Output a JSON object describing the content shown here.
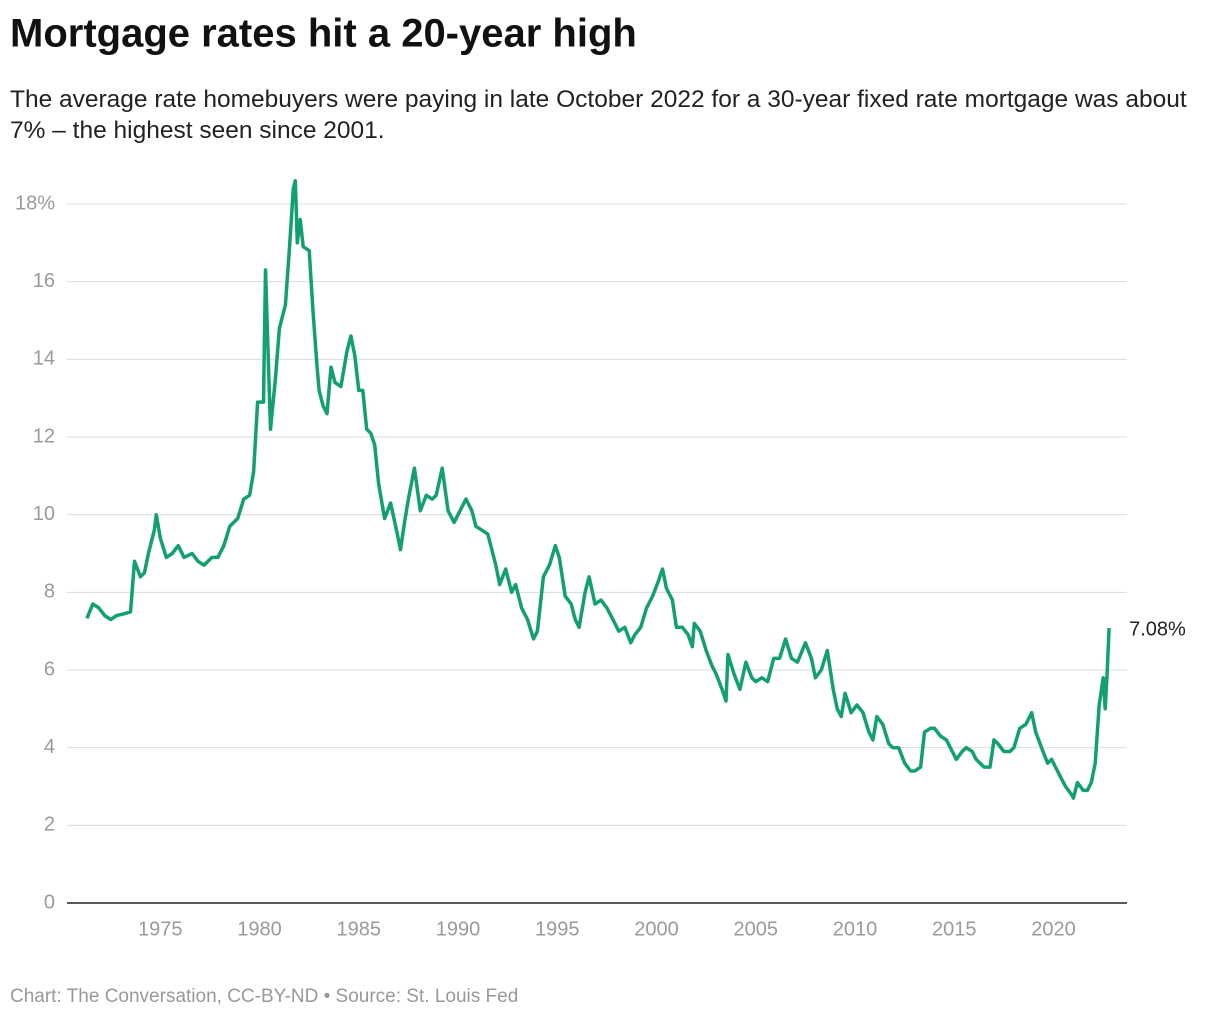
{
  "chart_data": {
    "type": "line",
    "title": "Mortgage rates hit a 20-year high",
    "subtitle": "The average rate homebuyers were paying in late October 2022 for a 30-year fixed rate mortgage was about 7% – the highest seen since 2001.",
    "source": "Chart: The Conversation, CC-BY-ND • Source: St. Louis Fed",
    "color": "#13a06f",
    "end_label": "7.08%",
    "grid": true,
    "xlim": [
      1970.3,
      2023.7
    ],
    "xticks": [
      1975,
      1980,
      1985,
      1990,
      1995,
      2000,
      2005,
      2010,
      2015,
      2020
    ],
    "ylim": [
      0,
      18
    ],
    "yticks": [
      0,
      2,
      4,
      6,
      8,
      10,
      12,
      14,
      16,
      {
        "value": 18,
        "label": "18%"
      }
    ],
    "x": [
      1971.3,
      1971.6,
      1971.9,
      1972.2,
      1972.5,
      1972.8,
      1973.2,
      1973.5,
      1973.7,
      1974.0,
      1974.2,
      1974.4,
      1974.7,
      1974.8,
      1975.0,
      1975.3,
      1975.6,
      1975.9,
      1976.2,
      1976.6,
      1976.9,
      1977.2,
      1977.6,
      1977.9,
      1978.2,
      1978.5,
      1978.9,
      1979.2,
      1979.5,
      1979.7,
      1979.9,
      1980.2,
      1980.3,
      1980.55,
      1980.8,
      1981.0,
      1981.3,
      1981.5,
      1981.7,
      1981.8,
      1981.9,
      1982.05,
      1982.2,
      1982.5,
      1982.7,
      1982.9,
      1983.0,
      1983.2,
      1983.4,
      1983.6,
      1983.8,
      1984.1,
      1984.4,
      1984.6,
      1984.8,
      1985.0,
      1985.2,
      1985.4,
      1985.6,
      1985.8,
      1986.0,
      1986.3,
      1986.6,
      1986.9,
      1987.1,
      1987.3,
      1987.5,
      1987.8,
      1988.1,
      1988.4,
      1988.7,
      1988.9,
      1989.2,
      1989.5,
      1989.8,
      1990.1,
      1990.4,
      1990.7,
      1990.9,
      1991.2,
      1991.5,
      1991.9,
      1992.1,
      1992.4,
      1992.7,
      1992.9,
      1993.2,
      1993.5,
      1993.8,
      1994.0,
      1994.3,
      1994.6,
      1994.9,
      1995.1,
      1995.4,
      1995.7,
      1995.9,
      1996.1,
      1996.4,
      1996.6,
      1996.9,
      1997.2,
      1997.5,
      1997.8,
      1998.1,
      1998.4,
      1998.7,
      1998.9,
      1999.2,
      1999.5,
      1999.8,
      2000.1,
      2000.3,
      2000.5,
      2000.8,
      2001.0,
      2001.3,
      2001.6,
      2001.8,
      2001.9,
      2002.2,
      2002.5,
      2002.8,
      2003.0,
      2003.3,
      2003.5,
      2003.6,
      2003.9,
      2004.2,
      2004.5,
      2004.8,
      2005.0,
      2005.3,
      2005.6,
      2005.9,
      2006.2,
      2006.5,
      2006.8,
      2007.1,
      2007.5,
      2007.8,
      2008.0,
      2008.3,
      2008.6,
      2008.9,
      2009.1,
      2009.3,
      2009.5,
      2009.8,
      2010.1,
      2010.4,
      2010.7,
      2010.9,
      2011.1,
      2011.4,
      2011.7,
      2011.9,
      2012.2,
      2012.5,
      2012.8,
      2013.0,
      2013.3,
      2013.5,
      2013.8,
      2014.0,
      2014.3,
      2014.6,
      2014.9,
      2015.1,
      2015.4,
      2015.6,
      2015.9,
      2016.1,
      2016.5,
      2016.8,
      2017.0,
      2017.2,
      2017.5,
      2017.8,
      2018.0,
      2018.3,
      2018.6,
      2018.9,
      2019.1,
      2019.4,
      2019.7,
      2019.9,
      2020.1,
      2020.3,
      2020.6,
      2020.9,
      2021.0,
      2021.2,
      2021.5,
      2021.7,
      2021.9,
      2022.1,
      2022.3,
      2022.5,
      2022.6,
      2022.7,
      2022.8
    ],
    "values": [
      7.33,
      7.7,
      7.6,
      7.4,
      7.3,
      7.4,
      7.45,
      7.5,
      8.8,
      8.4,
      8.5,
      9.0,
      9.6,
      10.0,
      9.4,
      8.9,
      9.0,
      9.2,
      8.9,
      9.0,
      8.8,
      8.7,
      8.9,
      8.9,
      9.2,
      9.7,
      9.9,
      10.4,
      10.5,
      11.1,
      12.9,
      12.9,
      16.3,
      12.2,
      13.5,
      14.8,
      15.4,
      16.8,
      18.4,
      18.6,
      17.0,
      17.6,
      16.9,
      16.8,
      15.2,
      13.8,
      13.2,
      12.8,
      12.6,
      13.8,
      13.4,
      13.3,
      14.2,
      14.6,
      14.1,
      13.2,
      13.2,
      12.2,
      12.1,
      11.8,
      10.8,
      9.9,
      10.3,
      9.6,
      9.1,
      9.8,
      10.4,
      11.2,
      10.1,
      10.5,
      10.4,
      10.5,
      11.2,
      10.1,
      9.8,
      10.1,
      10.4,
      10.1,
      9.7,
      9.6,
      9.5,
      8.7,
      8.2,
      8.6,
      8.0,
      8.2,
      7.6,
      7.3,
      6.8,
      7.0,
      8.4,
      8.7,
      9.2,
      8.9,
      7.9,
      7.7,
      7.3,
      7.1,
      8.0,
      8.4,
      7.7,
      7.8,
      7.6,
      7.3,
      7.0,
      7.1,
      6.7,
      6.9,
      7.1,
      7.6,
      7.9,
      8.3,
      8.6,
      8.1,
      7.8,
      7.1,
      7.1,
      6.9,
      6.6,
      7.2,
      7.0,
      6.5,
      6.1,
      5.9,
      5.5,
      5.2,
      6.4,
      5.9,
      5.5,
      6.2,
      5.8,
      5.7,
      5.8,
      5.7,
      6.3,
      6.3,
      6.8,
      6.3,
      6.2,
      6.7,
      6.3,
      5.8,
      6.0,
      6.5,
      5.5,
      5.0,
      4.8,
      5.4,
      4.9,
      5.1,
      4.9,
      4.4,
      4.2,
      4.8,
      4.6,
      4.1,
      4.0,
      4.0,
      3.6,
      3.4,
      3.4,
      3.5,
      4.4,
      4.5,
      4.5,
      4.3,
      4.2,
      3.9,
      3.7,
      3.9,
      4.0,
      3.9,
      3.7,
      3.5,
      3.5,
      4.2,
      4.1,
      3.9,
      3.9,
      4.0,
      4.5,
      4.6,
      4.9,
      4.4,
      4.0,
      3.6,
      3.7,
      3.5,
      3.3,
      3.0,
      2.8,
      2.7,
      3.1,
      2.9,
      2.9,
      3.1,
      3.6,
      5.1,
      5.8,
      5.0,
      5.9,
      7.08
    ]
  }
}
